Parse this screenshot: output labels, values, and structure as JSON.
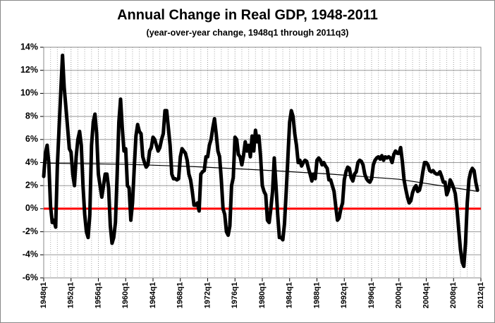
{
  "chart_data": {
    "type": "line",
    "title": "Annual Change in Real GDP, 1948-2011",
    "subtitle": "(year-over-year change, 1948q1 through 2011q3)",
    "x": [
      1948,
      1948.25,
      1948.5,
      1948.75,
      1949,
      1949.25,
      1949.5,
      1949.75,
      1950,
      1950.25,
      1950.5,
      1950.75,
      1951,
      1951.25,
      1951.5,
      1951.75,
      1952,
      1952.25,
      1952.5,
      1952.75,
      1953,
      1953.25,
      1953.5,
      1953.75,
      1954,
      1954.25,
      1954.5,
      1954.75,
      1955,
      1955.25,
      1955.5,
      1955.75,
      1956,
      1956.25,
      1956.5,
      1956.75,
      1957,
      1957.25,
      1957.5,
      1957.75,
      1958,
      1958.25,
      1958.5,
      1958.75,
      1959,
      1959.25,
      1959.5,
      1959.75,
      1960,
      1960.25,
      1960.5,
      1960.75,
      1961,
      1961.25,
      1961.5,
      1961.75,
      1962,
      1962.25,
      1962.5,
      1962.75,
      1963,
      1963.25,
      1963.5,
      1963.75,
      1964,
      1964.25,
      1964.5,
      1964.75,
      1965,
      1965.25,
      1965.5,
      1965.75,
      1966,
      1966.25,
      1966.5,
      1966.75,
      1967,
      1967.25,
      1967.5,
      1967.75,
      1968,
      1968.25,
      1968.5,
      1968.75,
      1969,
      1969.25,
      1969.5,
      1969.75,
      1970,
      1970.25,
      1970.5,
      1970.75,
      1971,
      1971.25,
      1971.5,
      1971.75,
      1972,
      1972.25,
      1972.5,
      1972.75,
      1973,
      1973.25,
      1973.5,
      1973.75,
      1974,
      1974.25,
      1974.5,
      1974.75,
      1975,
      1975.25,
      1975.5,
      1975.75,
      1976,
      1976.25,
      1976.5,
      1976.75,
      1977,
      1977.25,
      1977.5,
      1977.75,
      1978,
      1978.25,
      1978.5,
      1978.75,
      1979,
      1979.25,
      1979.5,
      1979.75,
      1980,
      1980.25,
      1980.5,
      1980.75,
      1981,
      1981.25,
      1981.5,
      1981.75,
      1982,
      1982.25,
      1982.5,
      1982.75,
      1983,
      1983.25,
      1983.5,
      1983.75,
      1984,
      1984.25,
      1984.5,
      1984.75,
      1985,
      1985.25,
      1985.5,
      1985.75,
      1986,
      1986.25,
      1986.5,
      1986.75,
      1987,
      1987.25,
      1987.5,
      1987.75,
      1988,
      1988.25,
      1988.5,
      1988.75,
      1989,
      1989.25,
      1989.5,
      1989.75,
      1990,
      1990.25,
      1990.5,
      1990.75,
      1991,
      1991.25,
      1991.5,
      1991.75,
      1992,
      1992.25,
      1992.5,
      1992.75,
      1993,
      1993.25,
      1993.5,
      1993.75,
      1994,
      1994.25,
      1994.5,
      1994.75,
      1995,
      1995.25,
      1995.5,
      1995.75,
      1996,
      1996.25,
      1996.5,
      1996.75,
      1997,
      1997.25,
      1997.5,
      1997.75,
      1998,
      1998.25,
      1998.5,
      1998.75,
      1999,
      1999.25,
      1999.5,
      1999.75,
      2000,
      2000.25,
      2000.5,
      2000.75,
      2001,
      2001.25,
      2001.5,
      2001.75,
      2002,
      2002.25,
      2002.5,
      2002.75,
      2003,
      2003.25,
      2003.5,
      2003.75,
      2004,
      2004.25,
      2004.5,
      2004.75,
      2005,
      2005.25,
      2005.5,
      2005.75,
      2006,
      2006.25,
      2006.5,
      2006.75,
      2007,
      2007.25,
      2007.5,
      2007.75,
      2008,
      2008.25,
      2008.5,
      2008.75,
      2009,
      2009.25,
      2009.5,
      2009.75,
      2010,
      2010.25,
      2010.5,
      2010.75,
      2011,
      2011.25,
      2011.5
    ],
    "series": [
      {
        "color": "#000000",
        "values": [
          2.8,
          4.8,
          5.5,
          3.9,
          0.2,
          -1.2,
          -1.0,
          -1.6,
          3.8,
          7.0,
          10.2,
          13.3,
          10.5,
          8.8,
          7.0,
          5.2,
          4.9,
          3.0,
          2.0,
          4.5,
          6.0,
          6.7,
          5.5,
          2.0,
          -0.5,
          -2.0,
          -2.5,
          -0.5,
          5.5,
          7.5,
          8.2,
          6.5,
          3.0,
          2.0,
          1.0,
          2.0,
          3.0,
          3.0,
          1.8,
          -1.5,
          -3.0,
          -2.5,
          -1.2,
          3.0,
          7.5,
          9.5,
          7.0,
          5.0,
          5.2,
          2.0,
          1.8,
          -1.0,
          0.5,
          3.5,
          6.3,
          7.3,
          6.7,
          6.5,
          4.5,
          4.0,
          3.6,
          3.8,
          5.0,
          5.3,
          6.2,
          6.0,
          5.5,
          5.0,
          5.3,
          6.0,
          6.5,
          8.5,
          8.5,
          7.0,
          5.5,
          3.0,
          2.6,
          2.6,
          2.5,
          2.6,
          4.5,
          5.2,
          5.0,
          4.8,
          4.2,
          3.0,
          2.5,
          1.5,
          0.3,
          0.3,
          0.5,
          -0.2,
          3.0,
          3.2,
          3.3,
          4.5,
          4.5,
          5.5,
          6.0,
          7.0,
          7.8,
          6.5,
          5.0,
          4.5,
          2.5,
          0.0,
          -0.5,
          -2.0,
          -2.3,
          -1.5,
          2.0,
          2.7,
          6.2,
          6.0,
          4.7,
          4.5,
          3.8,
          4.6,
          5.8,
          5.0,
          5.5,
          4.5,
          6.3,
          5.0,
          6.8,
          5.8,
          6.3,
          4.5,
          2.0,
          1.5,
          1.2,
          -1.0,
          -1.2,
          0.0,
          1.5,
          4.4,
          2.0,
          -0.5,
          -2.5,
          -2.5,
          -2.7,
          -1.3,
          1.5,
          4.5,
          7.5,
          8.5,
          8.0,
          6.5,
          5.5,
          4.0,
          4.2,
          3.7,
          4.0,
          4.2,
          4.1,
          3.5,
          3.0,
          2.4,
          3.0,
          2.6,
          4.2,
          4.4,
          4.2,
          3.8,
          4.0,
          3.7,
          3.5,
          2.5,
          2.5,
          2.0,
          1.5,
          0.2,
          -1.0,
          -0.8,
          0.0,
          0.5,
          2.5,
          3.2,
          3.6,
          3.5,
          2.7,
          2.4,
          3.0,
          3.2,
          4.0,
          4.2,
          4.1,
          3.8,
          3.0,
          2.6,
          2.4,
          2.3,
          2.6,
          3.8,
          4.2,
          4.4,
          4.5,
          4.3,
          4.6,
          4.2,
          4.5,
          4.4,
          4.5,
          4.4,
          4.0,
          4.7,
          5.0,
          4.8,
          4.8,
          5.3,
          4.1,
          2.5,
          1.7,
          1.0,
          0.5,
          0.7,
          1.4,
          1.8,
          2.0,
          1.5,
          1.6,
          2.2,
          3.2,
          4.0,
          4.0,
          3.8,
          3.3,
          3.2,
          3.3,
          3.1,
          3.0,
          3.0,
          3.2,
          2.8,
          2.3,
          2.3,
          1.2,
          1.6,
          2.5,
          2.2,
          1.8,
          1.3,
          0.0,
          -1.8,
          -3.5,
          -4.6,
          -5.0,
          -3.0,
          0.5,
          2.5,
          3.2,
          3.5,
          3.3,
          2.3,
          1.6
        ]
      },
      {
        "color": "#000000",
        "x": [
          1948,
          1960,
          1970,
          1980,
          1990,
          2000,
          2011.5
        ],
        "values": [
          3.95,
          3.85,
          3.65,
          3.35,
          3.0,
          2.55,
          1.5
        ]
      }
    ],
    "hline": {
      "value": 0,
      "color": "#ff0000"
    },
    "xlim": [
      1948,
      2012
    ],
    "xticks": [
      {
        "value": 1948,
        "label": "1948q1"
      },
      {
        "value": 1952,
        "label": "1952q1"
      },
      {
        "value": 1956,
        "label": "1956q1"
      },
      {
        "value": 1960,
        "label": "1960q1"
      },
      {
        "value": 1964,
        "label": "1964q1"
      },
      {
        "value": 1968,
        "label": "1968q1"
      },
      {
        "value": 1972,
        "label": "1972q1"
      },
      {
        "value": 1976,
        "label": "1976q1"
      },
      {
        "value": 1980,
        "label": "1980q1"
      },
      {
        "value": 1984,
        "label": "1984q1"
      },
      {
        "value": 1988,
        "label": "1988q1"
      },
      {
        "value": 1992,
        "label": "1992q1"
      },
      {
        "value": 1996,
        "label": "1996q1"
      },
      {
        "value": 2000,
        "label": "2000q1"
      },
      {
        "value": 2004,
        "label": "2004q1"
      },
      {
        "value": 2008,
        "label": "2008q1"
      },
      {
        "value": 2012,
        "label": "2012q1"
      }
    ],
    "xminorticks": [
      1949,
      1950,
      1951,
      1953,
      1954,
      1955,
      1957,
      1958,
      1959,
      1961,
      1962,
      1963,
      1965,
      1966,
      1967,
      1969,
      1970,
      1971,
      1973,
      1974,
      1975,
      1977,
      1978,
      1979,
      1981,
      1982,
      1983,
      1985,
      1986,
      1987,
      1989,
      1990,
      1991,
      1993,
      1994,
      1995,
      1997,
      1998,
      1999,
      2001,
      2002,
      2003,
      2005,
      2006,
      2007,
      2009,
      2010,
      2011
    ],
    "ylim": [
      -6,
      14
    ],
    "yticks": [
      {
        "value": -6,
        "label": "-6%"
      },
      {
        "value": -4,
        "label": "-4%"
      },
      {
        "value": -2,
        "label": "-2%"
      },
      {
        "value": 0,
        "label": "0%"
      },
      {
        "value": 2,
        "label": "2%"
      },
      {
        "value": 4,
        "label": "4%"
      },
      {
        "value": 6,
        "label": "6%"
      },
      {
        "value": 8,
        "label": "8%"
      },
      {
        "value": 10,
        "label": "10%"
      },
      {
        "value": 12,
        "label": "12%"
      },
      {
        "value": 14,
        "label": "14%"
      }
    ],
    "grid": true
  }
}
